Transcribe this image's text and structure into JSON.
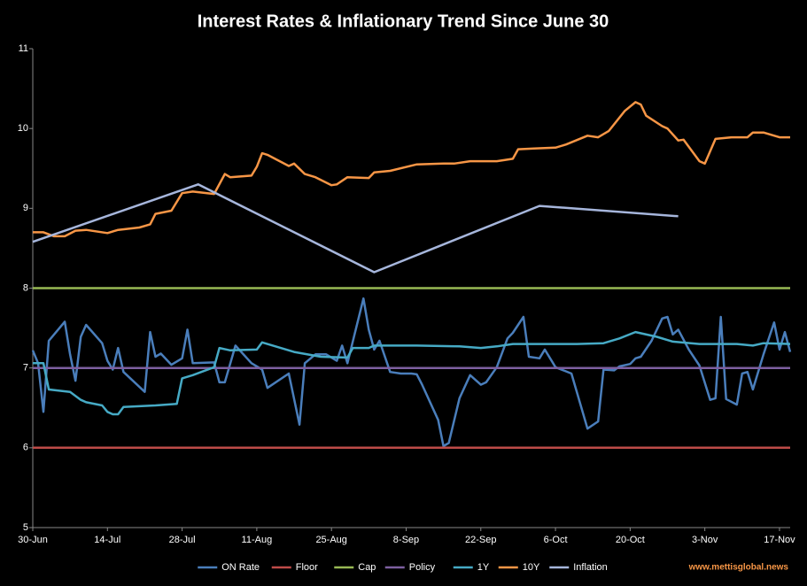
{
  "chart_data": {
    "type": "line",
    "title": "Interest Rates & Inflationary Trend Since June 30",
    "source": "www.mettisglobal.news",
    "xlim": [
      "30-Jun",
      "19-Nov"
    ],
    "xticks": [
      "30-Jun",
      "14-Jul",
      "28-Jul",
      "11-Aug",
      "25-Aug",
      "8-Sep",
      "22-Sep",
      "6-Oct",
      "20-Oct",
      "3-Nov",
      "17-Nov"
    ],
    "ylim": [
      5,
      11
    ],
    "yticks": [
      5,
      6,
      7,
      8,
      9,
      10,
      11
    ],
    "legend": "bottom",
    "series": [
      {
        "name": "ON Rate",
        "color": "#4a7ebb",
        "x": [
          "30-Jun",
          "1-Jul",
          "2-Jul",
          "3-Jul",
          "6-Jul",
          "7-Jul",
          "8-Jul",
          "9-Jul",
          "10-Jul",
          "13-Jul",
          "14-Jul",
          "15-Jul",
          "16-Jul",
          "17-Jul",
          "21-Jul",
          "22-Jul",
          "23-Jul",
          "24-Jul",
          "26-Jul",
          "28-Jul",
          "29-Jul",
          "30-Jul",
          "3-Aug",
          "4-Aug",
          "5-Aug",
          "7-Aug",
          "10-Aug",
          "12-Aug",
          "13-Aug",
          "17-Aug",
          "19-Aug",
          "20-Aug",
          "22-Aug",
          "24-Aug",
          "26-Aug",
          "27-Aug",
          "28-Aug",
          "31-Aug",
          "1-Sep",
          "2-Sep",
          "3-Sep",
          "5-Sep",
          "7-Sep",
          "9-Sep",
          "10-Sep",
          "11-Sep",
          "14-Sep",
          "15-Sep",
          "16-Sep",
          "18-Sep",
          "20-Sep",
          "22-Sep",
          "23-Sep",
          "25-Sep",
          "27-Sep",
          "28-Sep",
          "30-Sep",
          "1-Oct",
          "3-Oct",
          "4-Oct",
          "6-Oct",
          "9-Oct",
          "12-Oct",
          "14-Oct",
          "15-Oct",
          "17-Oct",
          "18-Oct",
          "20-Oct",
          "21-Oct",
          "22-Oct",
          "24-Oct",
          "26-Oct",
          "27-Oct",
          "28-Oct",
          "29-Oct",
          "31-Oct",
          "2-Nov",
          "4-Nov",
          "5-Nov",
          "6-Nov",
          "7-Nov",
          "9-Nov",
          "10-Nov",
          "11-Nov",
          "12-Nov",
          "14-Nov",
          "16-Nov",
          "17-Nov",
          "18-Nov",
          "19-Nov"
        ],
        "values": [
          7.22,
          7.06,
          6.45,
          7.34,
          7.58,
          7.17,
          6.84,
          7.39,
          7.54,
          7.31,
          7.09,
          6.98,
          7.25,
          6.95,
          6.7,
          7.45,
          7.14,
          7.18,
          7.04,
          7.12,
          7.48,
          7.06,
          7.07,
          6.82,
          6.82,
          7.28,
          7.06,
          6.98,
          6.75,
          6.93,
          6.29,
          7.06,
          7.17,
          7.17,
          7.09,
          7.28,
          7.06,
          7.87,
          7.48,
          7.23,
          7.34,
          6.95,
          6.93,
          6.93,
          6.92,
          6.79,
          6.35,
          6.02,
          6.06,
          6.62,
          6.91,
          6.79,
          6.82,
          7.01,
          7.37,
          7.44,
          7.64,
          7.14,
          7.12,
          7.23,
          7.01,
          6.93,
          6.24,
          6.33,
          6.98,
          6.97,
          7.02,
          7.05,
          7.12,
          7.14,
          7.34,
          7.62,
          7.64,
          7.42,
          7.48,
          7.23,
          7.03,
          6.6,
          6.62,
          7.64,
          6.61,
          6.54,
          6.93,
          6.95,
          6.73,
          7.17,
          7.57,
          7.23,
          7.45,
          7.2
        ]
      },
      {
        "name": "Floor",
        "color": "#be4b48",
        "x": [
          "30-Jun",
          "19-Nov"
        ],
        "values": [
          6,
          6
        ]
      },
      {
        "name": "Cap",
        "color": "#98b954",
        "x": [
          "30-Jun",
          "19-Nov"
        ],
        "values": [
          8,
          8
        ]
      },
      {
        "name": "Policy",
        "color": "#7d5fa0",
        "x": [
          "30-Jun",
          "19-Nov"
        ],
        "values": [
          7,
          7
        ]
      },
      {
        "name": "1Y",
        "color": "#46aac5",
        "x": [
          "30-Jun",
          "2-Jul",
          "3-Jul",
          "7-Jul",
          "9-Jul",
          "10-Jul",
          "13-Jul",
          "14-Jul",
          "15-Jul",
          "16-Jul",
          "17-Jul",
          "20-Jul",
          "23-Jul",
          "27-Jul",
          "28-Jul",
          "30-Jul",
          "3-Aug",
          "4-Aug",
          "6-Aug",
          "11-Aug",
          "12-Aug",
          "18-Aug",
          "23-Aug",
          "28-Aug",
          "29-Aug",
          "1-Sep",
          "2-Sep",
          "10-Sep",
          "18-Sep",
          "22-Sep",
          "25-Sep",
          "28-Sep",
          "10-Oct",
          "15-Oct",
          "18-Oct",
          "21-Oct",
          "25-Oct",
          "28-Oct",
          "2-Nov",
          "9-Nov",
          "12-Nov",
          "14-Nov",
          "19-Nov"
        ],
        "values": [
          7.06,
          7.06,
          6.73,
          6.7,
          6.6,
          6.57,
          6.53,
          6.45,
          6.42,
          6.42,
          6.51,
          6.52,
          6.53,
          6.55,
          6.87,
          6.91,
          7.01,
          7.25,
          7.22,
          7.23,
          7.32,
          7.2,
          7.14,
          7.13,
          7.25,
          7.25,
          7.28,
          7.28,
          7.27,
          7.25,
          7.27,
          7.3,
          7.3,
          7.31,
          7.37,
          7.45,
          7.39,
          7.33,
          7.3,
          7.3,
          7.28,
          7.31,
          7.3
        ]
      },
      {
        "name": "10Y",
        "color": "#f79646",
        "x": [
          "30-Jun",
          "2-Jul",
          "4-Jul",
          "6-Jul",
          "8-Jul",
          "10-Jul",
          "14-Jul",
          "16-Jul",
          "20-Jul",
          "22-Jul",
          "23-Jul",
          "26-Jul",
          "28-Jul",
          "30-Jul",
          "3-Aug",
          "5-Aug",
          "6-Aug",
          "10-Aug",
          "11-Aug",
          "12-Aug",
          "13-Aug",
          "17-Aug",
          "18-Aug",
          "20-Aug",
          "22-Aug",
          "25-Aug",
          "26-Aug",
          "28-Aug",
          "1-Sep",
          "2-Sep",
          "5-Sep",
          "10-Sep",
          "15-Sep",
          "17-Sep",
          "20-Sep",
          "25-Sep",
          "28-Sep",
          "29-Sep",
          "2-Oct",
          "6-Oct",
          "8-Oct",
          "12-Oct",
          "14-Oct",
          "16-Oct",
          "19-Oct",
          "21-Oct",
          "22-Oct",
          "23-Oct",
          "26-Oct",
          "27-Oct",
          "29-Oct",
          "30-Oct",
          "2-Nov",
          "3-Nov",
          "5-Nov",
          "8-Nov",
          "11-Nov",
          "12-Nov",
          "14-Nov",
          "17-Nov",
          "19-Nov"
        ],
        "values": [
          8.7,
          8.7,
          8.65,
          8.65,
          8.72,
          8.73,
          8.69,
          8.73,
          8.76,
          8.8,
          8.93,
          8.97,
          9.19,
          9.21,
          9.18,
          9.43,
          9.39,
          9.41,
          9.52,
          9.69,
          9.67,
          9.53,
          9.56,
          9.43,
          9.39,
          9.29,
          9.3,
          9.39,
          9.38,
          9.45,
          9.47,
          9.55,
          9.56,
          9.56,
          9.59,
          9.59,
          9.62,
          9.74,
          9.75,
          9.76,
          9.8,
          9.91,
          9.89,
          9.97,
          10.22,
          10.33,
          10.3,
          10.16,
          10.03,
          10.0,
          9.85,
          9.86,
          9.59,
          9.56,
          9.87,
          9.89,
          9.89,
          9.95,
          9.95,
          9.89,
          9.89
        ]
      },
      {
        "name": "Inflation",
        "color": "#a6b6dc",
        "x": [
          "30-Jun",
          "31-Jul",
          "2-Sep",
          "3-Oct",
          "29-Oct"
        ],
        "values": [
          8.58,
          9.3,
          8.2,
          9.03,
          8.9
        ]
      }
    ]
  }
}
